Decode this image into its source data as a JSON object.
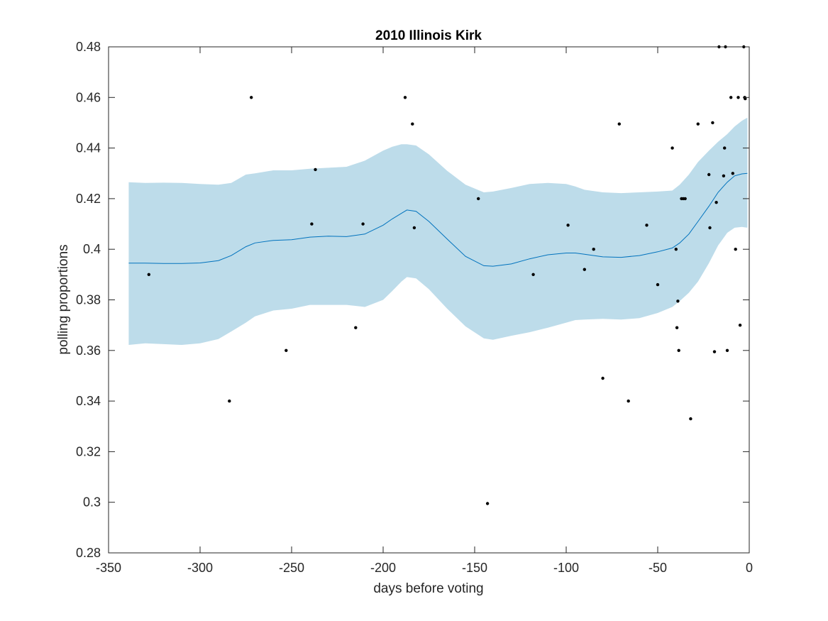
{
  "chart_data": {
    "type": "line",
    "title": "2010 Illinois Kirk",
    "xlabel": "days before voting",
    "ylabel": "polling proportions",
    "xlim": [
      -350,
      0
    ],
    "ylim": [
      0.28,
      0.48
    ],
    "xticks": [
      "-350",
      "-300",
      "-250",
      "-200",
      "-150",
      "-100",
      "-50",
      "0"
    ],
    "yticks": [
      "0.28",
      "0.3",
      "0.32",
      "0.34",
      "0.36",
      "0.38",
      "0.4",
      "0.42",
      "0.44",
      "0.46",
      "0.48"
    ],
    "grid": false,
    "colors": {
      "band": "#bddcea",
      "trend": "#0072bd",
      "points": "#000000"
    },
    "trend": {
      "x": [
        -339,
        -330,
        -320,
        -310,
        -300,
        -290,
        -283,
        -275,
        -270,
        -260,
        -250,
        -240,
        -230,
        -220,
        -210,
        -200,
        -195,
        -190,
        -187,
        -182,
        -175,
        -165,
        -155,
        -145,
        -140,
        -130,
        -120,
        -110,
        -100,
        -95,
        -90,
        -80,
        -70,
        -60,
        -50,
        -42,
        -38,
        -33,
        -28,
        -22,
        -17,
        -12,
        -8,
        -4,
        -1
      ],
      "y": [
        0.3945,
        0.3945,
        0.3944,
        0.3944,
        0.3946,
        0.3955,
        0.3975,
        0.401,
        0.4025,
        0.4035,
        0.4038,
        0.4048,
        0.4052,
        0.405,
        0.406,
        0.4095,
        0.412,
        0.4142,
        0.4155,
        0.415,
        0.411,
        0.404,
        0.3972,
        0.3935,
        0.3933,
        0.3942,
        0.3962,
        0.3978,
        0.3985,
        0.3985,
        0.398,
        0.397,
        0.3968,
        0.3975,
        0.399,
        0.4005,
        0.4025,
        0.406,
        0.411,
        0.417,
        0.4225,
        0.4265,
        0.429,
        0.4298,
        0.43
      ],
      "upper": [
        0.4265,
        0.4262,
        0.4263,
        0.4262,
        0.4258,
        0.4255,
        0.4262,
        0.4295,
        0.43,
        0.4312,
        0.4312,
        0.4318,
        0.4322,
        0.4326,
        0.435,
        0.439,
        0.4405,
        0.4415,
        0.4415,
        0.441,
        0.4375,
        0.431,
        0.4255,
        0.4225,
        0.4228,
        0.4242,
        0.4258,
        0.4262,
        0.4258,
        0.4248,
        0.4235,
        0.4225,
        0.4222,
        0.4225,
        0.4228,
        0.4232,
        0.4255,
        0.4295,
        0.4345,
        0.439,
        0.4425,
        0.4455,
        0.4485,
        0.4508,
        0.452
      ],
      "lower": [
        0.3622,
        0.3628,
        0.3625,
        0.3622,
        0.3628,
        0.3645,
        0.3675,
        0.371,
        0.3735,
        0.3758,
        0.3765,
        0.378,
        0.378,
        0.378,
        0.3772,
        0.38,
        0.3835,
        0.3872,
        0.389,
        0.3885,
        0.3842,
        0.3765,
        0.3695,
        0.3648,
        0.3642,
        0.3658,
        0.3672,
        0.369,
        0.371,
        0.372,
        0.3722,
        0.3725,
        0.3722,
        0.3728,
        0.3748,
        0.3772,
        0.3795,
        0.3828,
        0.3872,
        0.3945,
        0.4015,
        0.4065,
        0.4085,
        0.4088,
        0.4085
      ]
    },
    "points": {
      "x": [
        -328,
        -284,
        -272,
        -253,
        -239,
        -237,
        -215,
        -211,
        -188,
        -184,
        -183,
        -148,
        -143,
        -118,
        -99,
        -90,
        -85,
        -80,
        -71,
        -66,
        -56,
        -50,
        -42,
        -40,
        -39.5,
        -39,
        -38.5,
        -37,
        -36,
        -35,
        -32,
        -28,
        -22,
        -21.5,
        -20,
        -19,
        -18,
        -16.5,
        -14,
        -13.5,
        -13,
        -12,
        -10,
        -9,
        -7.5,
        -6,
        -5,
        -3,
        -2.5,
        -2.2
      ],
      "y": [
        0.39,
        0.34,
        0.46,
        0.36,
        0.41,
        0.4315,
        0.369,
        0.41,
        0.46,
        0.4495,
        0.4085,
        0.42,
        0.2995,
        0.39,
        0.4095,
        0.392,
        0.4,
        0.349,
        0.4495,
        0.34,
        0.4095,
        0.386,
        0.44,
        0.4,
        0.369,
        0.3795,
        0.36,
        0.42,
        0.42,
        0.42,
        0.333,
        0.4495,
        0.4295,
        0.4085,
        0.45,
        0.3595,
        0.4185,
        0.48,
        0.429,
        0.44,
        0.48,
        0.36,
        0.46,
        0.43,
        0.4,
        0.46,
        0.37,
        0.48,
        0.46,
        0.4595
      ]
    }
  }
}
